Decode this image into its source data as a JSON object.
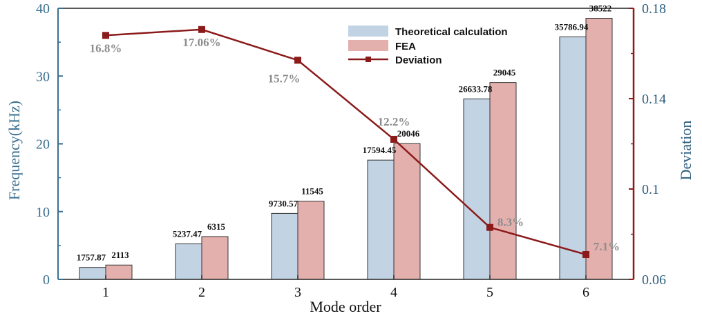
{
  "chart_data": {
    "type": "bar",
    "xlabel": "Mode order",
    "ylabel": "Frequency(kHz)",
    "y2label": "Deviation",
    "categories": [
      "1",
      "2",
      "3",
      "4",
      "5",
      "6"
    ],
    "ylim": [
      0,
      40
    ],
    "yticks": [
      "0",
      "10",
      "20",
      "30",
      "40"
    ],
    "y2lim": [
      0.06,
      0.18
    ],
    "y2ticks": [
      "0.06",
      "0.1",
      "0.14",
      "0.18"
    ],
    "legend_position": "top-right",
    "series": [
      {
        "name": "Theoretical calculation",
        "kind": "bar",
        "values": [
          1.75787,
          5.23747,
          9.73057,
          17.59445,
          26.63378,
          35.78694
        ],
        "labels": [
          "1757.87",
          "5237.47",
          "9730.57",
          "17594.45",
          "26633.78",
          "35786.94"
        ]
      },
      {
        "name": "FEA",
        "kind": "bar",
        "values": [
          2.113,
          6.315,
          11.545,
          20.046,
          29.045,
          38.522
        ],
        "labels": [
          "2113",
          "6315",
          "11545",
          "20046",
          "29045",
          "38522"
        ]
      },
      {
        "name": "Deviation",
        "kind": "line",
        "axis": "right",
        "values": [
          0.168,
          0.1706,
          0.157,
          0.122,
          0.083,
          0.071
        ],
        "labels": [
          "16.8%",
          "17.06%",
          "15.7%",
          "12.2%",
          "8.3%",
          "7.1%"
        ]
      }
    ]
  },
  "colors": {
    "theoretical": "#c2d3e3",
    "fea": "#e3b0ad",
    "deviation": "#8b1a1a",
    "left_axis": "#3a6f8f",
    "right_axis": "#8b1a1a",
    "deviation_label": "#8c8c8c",
    "bar_edge": "#333333"
  }
}
